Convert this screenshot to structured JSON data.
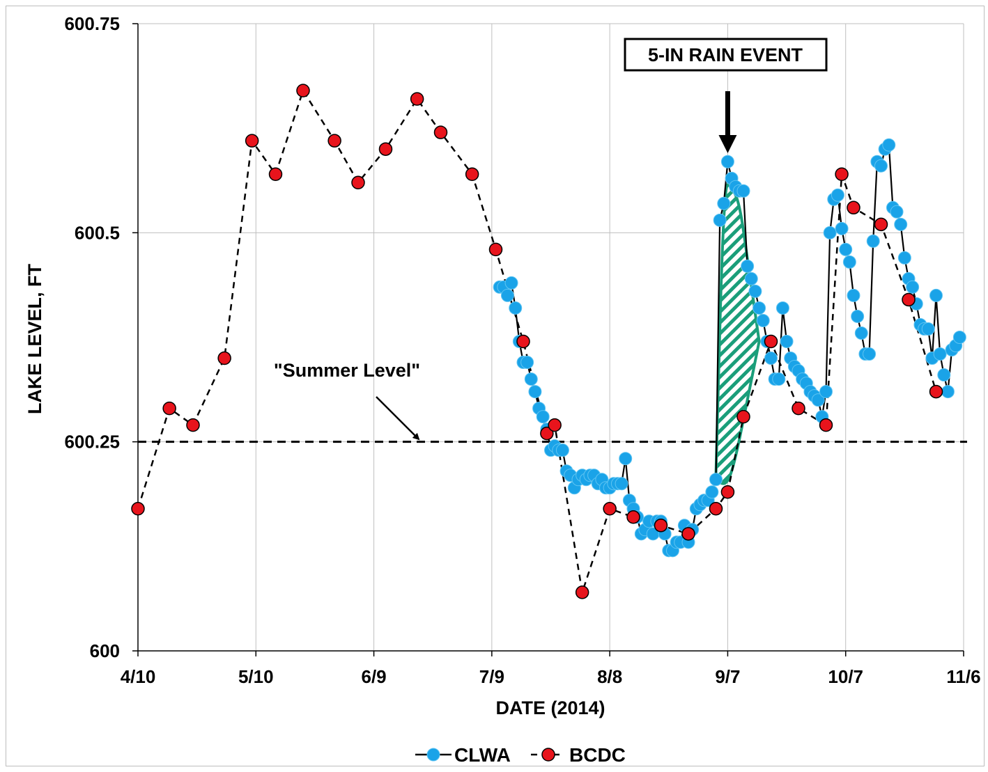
{
  "chart_data": {
    "type": "line",
    "xlabel": "DATE (2014)",
    "ylabel": "LAKE LEVEL, FT",
    "ylim": [
      600,
      600.75
    ],
    "y_ticks": [
      "600",
      "600.25",
      "600.5",
      "600.75"
    ],
    "x_ticks": [
      "4/10",
      "5/10",
      "6/9",
      "7/9",
      "8/8",
      "9/7",
      "10/7",
      "11/6"
    ],
    "xlim": [
      "2014-04-10",
      "2014-11-06"
    ],
    "grid": true,
    "legend_position": "bottom",
    "reference_line": {
      "value": 600.25,
      "label": "\"Summer Level\""
    },
    "annotations": [
      {
        "text": "5-IN RAIN EVENT",
        "date": "2014-09-07"
      }
    ],
    "colors": {
      "CLWA": "#1aa3e8",
      "BCDC": "#e8141c",
      "shade": "#1a9e7a"
    },
    "series": [
      {
        "name": "CLWA",
        "points": [
          [
            "2014-07-11",
            600.435
          ],
          [
            "2014-07-12",
            600.435
          ],
          [
            "2014-07-13",
            600.425
          ],
          [
            "2014-07-14",
            600.44
          ],
          [
            "2014-07-15",
            600.41
          ],
          [
            "2014-07-16",
            600.37
          ],
          [
            "2014-07-17",
            600.345
          ],
          [
            "2014-07-18",
            600.345
          ],
          [
            "2014-07-19",
            600.325
          ],
          [
            "2014-07-20",
            600.31
          ],
          [
            "2014-07-21",
            600.29
          ],
          [
            "2014-07-22",
            600.28
          ],
          [
            "2014-07-23",
            600.265
          ],
          [
            "2014-07-24",
            600.24
          ],
          [
            "2014-07-25",
            600.245
          ],
          [
            "2014-07-26",
            600.24
          ],
          [
            "2014-07-27",
            600.24
          ],
          [
            "2014-07-28",
            600.215
          ],
          [
            "2014-07-29",
            600.21
          ],
          [
            "2014-07-30",
            600.195
          ],
          [
            "2014-07-31",
            600.205
          ],
          [
            "2014-08-01",
            600.21
          ],
          [
            "2014-08-02",
            600.205
          ],
          [
            "2014-08-03",
            600.21
          ],
          [
            "2014-08-04",
            600.21
          ],
          [
            "2014-08-05",
            600.2
          ],
          [
            "2014-08-06",
            600.205
          ],
          [
            "2014-08-07",
            600.195
          ],
          [
            "2014-08-08",
            600.195
          ],
          [
            "2014-08-09",
            600.2
          ],
          [
            "2014-08-10",
            600.2
          ],
          [
            "2014-08-11",
            600.2
          ],
          [
            "2014-08-12",
            600.23
          ],
          [
            "2014-08-13",
            600.18
          ],
          [
            "2014-08-14",
            600.17
          ],
          [
            "2014-08-15",
            600.16
          ],
          [
            "2014-08-16",
            600.14
          ],
          [
            "2014-08-17",
            600.145
          ],
          [
            "2014-08-18",
            600.155
          ],
          [
            "2014-08-19",
            600.14
          ],
          [
            "2014-08-20",
            600.155
          ],
          [
            "2014-08-21",
            600.155
          ],
          [
            "2014-08-22",
            600.14
          ],
          [
            "2014-08-23",
            600.12
          ],
          [
            "2014-08-24",
            600.12
          ],
          [
            "2014-08-25",
            600.13
          ],
          [
            "2014-08-26",
            600.13
          ],
          [
            "2014-08-27",
            600.15
          ],
          [
            "2014-08-28",
            600.13
          ],
          [
            "2014-08-29",
            600.145
          ],
          [
            "2014-08-30",
            600.17
          ],
          [
            "2014-08-31",
            600.175
          ],
          [
            "2014-09-01",
            600.18
          ],
          [
            "2014-09-02",
            600.18
          ],
          [
            "2014-09-03",
            600.19
          ],
          [
            "2014-09-04",
            600.205
          ],
          [
            "2014-09-05",
            600.515
          ],
          [
            "2014-09-06",
            600.535
          ],
          [
            "2014-09-07",
            600.585
          ],
          [
            "2014-09-08",
            600.565
          ],
          [
            "2014-09-09",
            600.555
          ],
          [
            "2014-09-10",
            600.55
          ],
          [
            "2014-09-11",
            600.55
          ],
          [
            "2014-09-12",
            600.46
          ],
          [
            "2014-09-13",
            600.445
          ],
          [
            "2014-09-14",
            600.43
          ],
          [
            "2014-09-15",
            600.41
          ],
          [
            "2014-09-16",
            600.395
          ],
          [
            "2014-09-17",
            600.37
          ],
          [
            "2014-09-18",
            600.35
          ],
          [
            "2014-09-19",
            600.325
          ],
          [
            "2014-09-20",
            600.325
          ],
          [
            "2014-09-21",
            600.41
          ],
          [
            "2014-09-22",
            600.37
          ],
          [
            "2014-09-23",
            600.35
          ],
          [
            "2014-09-24",
            600.34
          ],
          [
            "2014-09-25",
            600.335
          ],
          [
            "2014-09-26",
            600.325
          ],
          [
            "2014-09-27",
            600.32
          ],
          [
            "2014-09-28",
            600.31
          ],
          [
            "2014-09-29",
            600.305
          ],
          [
            "2014-09-30",
            600.3
          ],
          [
            "2014-10-01",
            600.28
          ],
          [
            "2014-10-02",
            600.31
          ],
          [
            "2014-10-03",
            600.5
          ],
          [
            "2014-10-04",
            600.54
          ],
          [
            "2014-10-05",
            600.545
          ],
          [
            "2014-10-06",
            600.505
          ],
          [
            "2014-10-07",
            600.48
          ],
          [
            "2014-10-08",
            600.465
          ],
          [
            "2014-10-09",
            600.425
          ],
          [
            "2014-10-10",
            600.4
          ],
          [
            "2014-10-11",
            600.38
          ],
          [
            "2014-10-12",
            600.355
          ],
          [
            "2014-10-13",
            600.355
          ],
          [
            "2014-10-14",
            600.49
          ],
          [
            "2014-10-15",
            600.585
          ],
          [
            "2014-10-16",
            600.58
          ],
          [
            "2014-10-17",
            600.6
          ],
          [
            "2014-10-18",
            600.605
          ],
          [
            "2014-10-19",
            600.53
          ],
          [
            "2014-10-20",
            600.525
          ],
          [
            "2014-10-21",
            600.51
          ],
          [
            "2014-10-22",
            600.47
          ],
          [
            "2014-10-23",
            600.445
          ],
          [
            "2014-10-24",
            600.435
          ],
          [
            "2014-10-25",
            600.415
          ],
          [
            "2014-10-26",
            600.39
          ],
          [
            "2014-10-27",
            600.385
          ],
          [
            "2014-10-28",
            600.385
          ],
          [
            "2014-10-29",
            600.35
          ],
          [
            "2014-10-30",
            600.425
          ],
          [
            "2014-10-31",
            600.355
          ],
          [
            "2014-11-01",
            600.33
          ],
          [
            "2014-11-02",
            600.31
          ],
          [
            "2014-11-03",
            600.36
          ],
          [
            "2014-11-04",
            600.365
          ],
          [
            "2014-11-05",
            600.375
          ]
        ]
      },
      {
        "name": "BCDC",
        "points": [
          [
            "2014-04-10",
            600.17
          ],
          [
            "2014-04-18",
            600.29
          ],
          [
            "2014-04-24",
            600.27
          ],
          [
            "2014-05-02",
            600.35
          ],
          [
            "2014-05-09",
            600.61
          ],
          [
            "2014-05-15",
            600.57
          ],
          [
            "2014-05-22",
            600.67
          ],
          [
            "2014-05-30",
            600.61
          ],
          [
            "2014-06-05",
            600.56
          ],
          [
            "2014-06-12",
            600.6
          ],
          [
            "2014-06-20",
            600.66
          ],
          [
            "2014-06-26",
            600.62
          ],
          [
            "2014-07-04",
            600.57
          ],
          [
            "2014-07-10",
            600.48
          ],
          [
            "2014-07-17",
            600.37
          ],
          [
            "2014-07-23",
            600.26
          ],
          [
            "2014-07-25",
            600.27
          ],
          [
            "2014-08-01",
            600.07
          ],
          [
            "2014-08-08",
            600.17
          ],
          [
            "2014-08-14",
            600.16
          ],
          [
            "2014-08-21",
            600.15
          ],
          [
            "2014-08-28",
            600.14
          ],
          [
            "2014-09-04",
            600.17
          ],
          [
            "2014-09-07",
            600.19
          ],
          [
            "2014-09-11",
            600.28
          ],
          [
            "2014-09-18",
            600.37
          ],
          [
            "2014-09-25",
            600.29
          ],
          [
            "2014-10-02",
            600.27
          ],
          [
            "2014-10-06",
            600.57
          ],
          [
            "2014-10-09",
            600.53
          ],
          [
            "2014-10-16",
            600.51
          ],
          [
            "2014-10-23",
            600.42
          ],
          [
            "2014-10-30",
            600.31
          ]
        ]
      }
    ],
    "shaded_region": {
      "upper": [
        [
          "2014-09-04",
          600.21
        ],
        [
          "2014-09-06",
          600.56
        ],
        [
          "2014-09-08",
          600.555
        ],
        [
          "2014-09-10",
          600.535
        ],
        [
          "2014-09-12",
          600.47
        ],
        [
          "2014-09-15",
          600.37
        ]
      ],
      "lower": [
        [
          "2014-09-15",
          600.37
        ],
        [
          "2014-09-12",
          600.3
        ],
        [
          "2014-09-09",
          600.23
        ],
        [
          "2014-09-07",
          600.2
        ],
        [
          "2014-09-05",
          600.2
        ],
        [
          "2014-09-04",
          600.21
        ]
      ]
    }
  }
}
